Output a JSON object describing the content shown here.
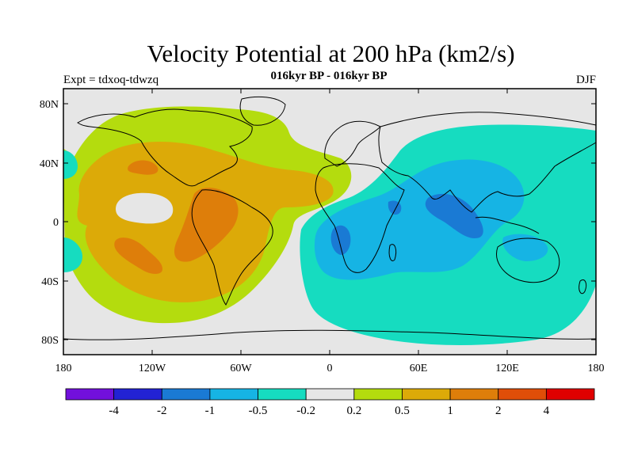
{
  "title": "Velocity Potential at 200 hPa (km2/s)",
  "subtitle": "016kyr BP - 016kyr BP",
  "left_label": "Expt = tdxoq-tdwzq",
  "right_label": "DJF",
  "colors": {
    "c_m4": "#7210dc",
    "c_m2": "#2222d4",
    "c_m1": "#1a7ad4",
    "c_m05": "#16b4e4",
    "c_m02": "#16dcc0",
    "c_0": "#e6e6e6",
    "c_02": "#b4dc0e",
    "c_05": "#dcaa08",
    "c_1": "#de7e0a",
    "c_2": "#e04e08",
    "c_4": "#e61010",
    "c_max": "#e00000",
    "land_line": "#000000"
  },
  "chart_data": {
    "type": "heatmap",
    "map_projection": "cylindrical-equidistant",
    "xlim": [
      -180,
      180
    ],
    "ylim": [
      -90,
      90
    ],
    "x_ticks": [
      "180",
      "120W",
      "60W",
      "0",
      "60E",
      "120E",
      "180"
    ],
    "y_ticks": [
      "80N",
      "40N",
      "0",
      "40S",
      "80S"
    ],
    "colorbar_labels": [
      "-4",
      "-2",
      "-1",
      "-0.5",
      "-0.2",
      "0.2",
      "0.5",
      "1",
      "2",
      "4"
    ],
    "colorbar_colors": [
      "#7210dc",
      "#2222d4",
      "#1a7ad4",
      "#16b4e4",
      "#16dcc0",
      "#e6e6e6",
      "#b4dc0e",
      "#dcaa08",
      "#de7e0a",
      "#e04e08",
      "#e00000"
    ],
    "features": [
      {
        "region": "Atlantic / South America / Eastern Pacific",
        "sign": "positive",
        "level_range": [
          0.2,
          2
        ]
      },
      {
        "region": "Indian Ocean / Maritime Continent / Western Pacific",
        "sign": "negative",
        "level_range": [
          -1,
          -0.2
        ]
      },
      {
        "region": "Central-eastern Pacific (20N-10N)",
        "sign": "near zero",
        "level_range": [
          -0.2,
          0.2
        ]
      },
      {
        "region": "Southern high latitudes",
        "sign": "near zero",
        "level_range": [
          -0.2,
          0.2
        ]
      }
    ]
  }
}
